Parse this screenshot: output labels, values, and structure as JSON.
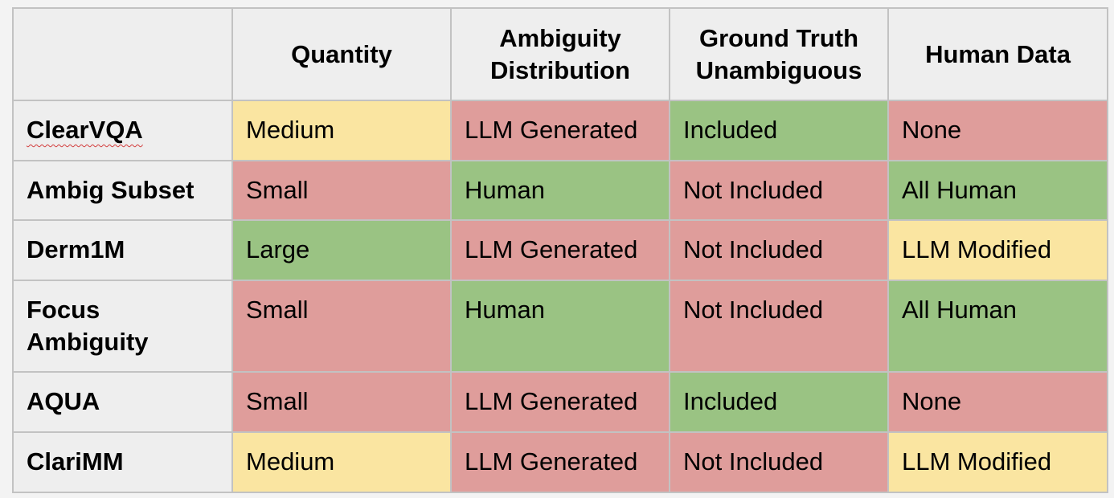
{
  "colors": {
    "good": "#9ac383",
    "medium": "#fae5a1",
    "bad": "#df9d9b",
    "header_bg": "#eeeeee",
    "border": "#c2c2c2"
  },
  "table": {
    "columns": [
      "",
      "Quantity",
      "Ambiguity Distribution",
      "Ground Truth Unambiguous",
      "Human Data"
    ],
    "rows": [
      {
        "name": "ClearVQA",
        "cells": [
          {
            "text": "Medium",
            "rating": "medium"
          },
          {
            "text": "LLM Generated",
            "rating": "bad"
          },
          {
            "text": "Included",
            "rating": "good"
          },
          {
            "text": "None",
            "rating": "bad"
          }
        ]
      },
      {
        "name": "Ambig Subset",
        "cells": [
          {
            "text": "Small",
            "rating": "bad"
          },
          {
            "text": "Human",
            "rating": "good"
          },
          {
            "text": "Not Included",
            "rating": "bad"
          },
          {
            "text": "All Human",
            "rating": "good"
          }
        ]
      },
      {
        "name": "Derm1M",
        "cells": [
          {
            "text": "Large",
            "rating": "good"
          },
          {
            "text": "LLM Generated",
            "rating": "bad"
          },
          {
            "text": "Not Included",
            "rating": "bad"
          },
          {
            "text": "LLM Modified",
            "rating": "medium"
          }
        ]
      },
      {
        "name": "Focus Ambiguity",
        "cells": [
          {
            "text": "Small",
            "rating": "bad"
          },
          {
            "text": "Human",
            "rating": "good"
          },
          {
            "text": "Not Included",
            "rating": "bad"
          },
          {
            "text": "All Human",
            "rating": "good"
          }
        ]
      },
      {
        "name": "AQUA",
        "cells": [
          {
            "text": "Small",
            "rating": "bad"
          },
          {
            "text": "LLM Generated",
            "rating": "bad"
          },
          {
            "text": "Included",
            "rating": "good"
          },
          {
            "text": "None",
            "rating": "bad"
          }
        ]
      },
      {
        "name": "ClariMM",
        "cells": [
          {
            "text": "Medium",
            "rating": "medium"
          },
          {
            "text": "LLM Generated",
            "rating": "bad"
          },
          {
            "text": "Not Included",
            "rating": "bad"
          },
          {
            "text": "LLM Modified",
            "rating": "medium"
          }
        ]
      }
    ]
  }
}
